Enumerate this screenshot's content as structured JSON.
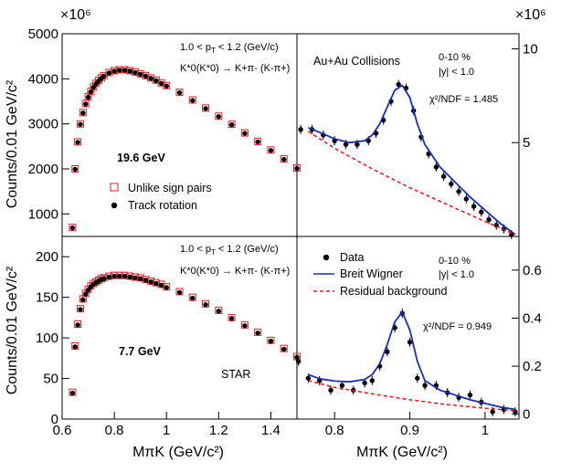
{
  "chart_data": [
    {
      "id": "top-left",
      "type": "scatter",
      "xlim": [
        0.6,
        1.5
      ],
      "ylim": [
        500,
        5000
      ],
      "ylabel": "Counts/0.01 GeV/c²",
      "y_multiplier": "×10⁶",
      "yticks": [
        1000,
        2000,
        3000,
        4000,
        5000
      ],
      "annotations": {
        "kinematics": "1.0 < pT < 1.2 (GeV/c)",
        "decay": "K*0(K*0bar) → K+π- (K-π+)",
        "energy": "19.6 GeV"
      },
      "legend": [
        "Unlike sign pairs",
        "Track rotation"
      ],
      "series": [
        {
          "name": "Unlike sign pairs",
          "marker": "open-red-square",
          "x": [
            0.64,
            0.65,
            0.66,
            0.67,
            0.68,
            0.69,
            0.7,
            0.71,
            0.72,
            0.73,
            0.74,
            0.75,
            0.76,
            0.78,
            0.8,
            0.82,
            0.84,
            0.86,
            0.88,
            0.9,
            0.92,
            0.94,
            0.96,
            0.98,
            1.0,
            1.05,
            1.1,
            1.15,
            1.2,
            1.25,
            1.3,
            1.35,
            1.4,
            1.45,
            1.5
          ],
          "values": [
            700,
            2000,
            2600,
            3000,
            3250,
            3450,
            3600,
            3720,
            3820,
            3900,
            3960,
            4020,
            4070,
            4140,
            4180,
            4200,
            4200,
            4180,
            4150,
            4110,
            4070,
            4020,
            3970,
            3910,
            3850,
            3700,
            3530,
            3350,
            3170,
            2990,
            2800,
            2610,
            2420,
            2220,
            2020
          ]
        },
        {
          "name": "Track rotation",
          "marker": "filled-black-circle",
          "x": [
            0.64,
            0.65,
            0.66,
            0.67,
            0.68,
            0.69,
            0.7,
            0.71,
            0.72,
            0.73,
            0.74,
            0.75,
            0.76,
            0.78,
            0.8,
            0.82,
            0.84,
            0.86,
            0.88,
            0.9,
            0.92,
            0.94,
            0.96,
            0.98,
            1.0,
            1.05,
            1.1,
            1.15,
            1.2,
            1.25,
            1.3,
            1.35,
            1.4,
            1.45,
            1.5
          ],
          "values": [
            690,
            1990,
            2590,
            2990,
            3240,
            3440,
            3590,
            3710,
            3810,
            3890,
            3950,
            4010,
            4060,
            4130,
            4170,
            4190,
            4190,
            4170,
            4140,
            4100,
            4060,
            4010,
            3960,
            3900,
            3840,
            3690,
            3520,
            3340,
            3160,
            2980,
            2790,
            2600,
            2410,
            2210,
            2010
          ]
        }
      ]
    },
    {
      "id": "top-right",
      "type": "scatter",
      "xlim": [
        0.75,
        1.045
      ],
      "ylim": [
        0,
        10.8
      ],
      "y_multiplier": "×10⁶",
      "yticks": [
        5,
        10
      ],
      "annotations": {
        "system": "Au+Au Collisions",
        "centrality": "0-10 %",
        "rapidity": "|y| < 1.0",
        "fit_quality": "χ²/NDF = 1.485"
      },
      "series": [
        {
          "name": "Data",
          "marker": "filled-black-circle",
          "x": [
            0.755,
            0.77,
            0.785,
            0.8,
            0.815,
            0.83,
            0.845,
            0.855,
            0.865,
            0.875,
            0.885,
            0.895,
            0.905,
            0.915,
            0.925,
            0.935,
            0.945,
            0.955,
            0.965,
            0.975,
            0.985,
            0.995,
            1.005,
            1.015,
            1.025,
            1.035
          ],
          "values": [
            5.7,
            5.7,
            5.4,
            5.1,
            4.9,
            4.9,
            5.1,
            5.5,
            6.2,
            7.2,
            8.1,
            7.9,
            6.7,
            5.3,
            4.4,
            3.7,
            3.2,
            2.8,
            2.4,
            2.0,
            1.6,
            1.3,
            0.9,
            0.6,
            0.4,
            0.1
          ]
        },
        {
          "name": "Breit Wigner",
          "style": "solid-blue",
          "x": [
            0.765,
            0.78,
            0.8,
            0.82,
            0.84,
            0.85,
            0.86,
            0.87,
            0.88,
            0.89,
            0.9,
            0.91,
            0.92,
            0.94,
            0.96,
            0.98,
            1.0,
            1.02,
            1.04
          ],
          "values": [
            5.8,
            5.55,
            5.2,
            5.0,
            5.1,
            5.4,
            6.0,
            6.9,
            7.8,
            8.05,
            7.4,
            6.0,
            4.9,
            3.7,
            2.9,
            2.1,
            1.4,
            0.7,
            0.1
          ]
        },
        {
          "name": "Residual background",
          "style": "dashed-red",
          "x": [
            0.765,
            0.8,
            0.85,
            0.9,
            0.95,
            1.0,
            1.04
          ],
          "values": [
            5.6,
            4.7,
            3.6,
            2.6,
            1.7,
            0.8,
            0.1
          ]
        }
      ]
    },
    {
      "id": "bottom-left",
      "type": "scatter",
      "xlim": [
        0.6,
        1.5
      ],
      "xlabel": "MπK (GeV/c²)",
      "ylim": [
        0,
        225
      ],
      "ylabel": "Counts/0.01 GeV/c²",
      "xticks": [
        0.6,
        0.8,
        1,
        1.2,
        1.4
      ],
      "yticks": [
        0,
        50,
        100,
        150,
        200
      ],
      "annotations": {
        "kinematics": "1.0 < pT < 1.2 (GeV/c)",
        "decay": "K*0(K*0bar) → K+π- (K-π+)",
        "energy": "7.7 GeV",
        "experiment": "STAR"
      },
      "series": [
        {
          "name": "Unlike sign pairs",
          "marker": "open-red-square",
          "x": [
            0.64,
            0.65,
            0.66,
            0.67,
            0.68,
            0.69,
            0.7,
            0.71,
            0.72,
            0.73,
            0.74,
            0.75,
            0.76,
            0.78,
            0.8,
            0.82,
            0.84,
            0.86,
            0.88,
            0.9,
            0.92,
            0.94,
            0.96,
            0.98,
            1.0,
            1.05,
            1.1,
            1.15,
            1.2,
            1.25,
            1.3,
            1.35,
            1.4,
            1.45,
            1.5
          ],
          "values": [
            33,
            90,
            117,
            136,
            148,
            155,
            160,
            164,
            167,
            169,
            171,
            173,
            174,
            176,
            177,
            177,
            177,
            176,
            175,
            174,
            172,
            170,
            168,
            166,
            163,
            157,
            150,
            142,
            134,
            125,
            116,
            107,
            97,
            87,
            77
          ]
        },
        {
          "name": "Track rotation",
          "marker": "filled-black-circle",
          "x": [
            0.64,
            0.65,
            0.66,
            0.67,
            0.68,
            0.69,
            0.7,
            0.71,
            0.72,
            0.73,
            0.74,
            0.75,
            0.76,
            0.78,
            0.8,
            0.82,
            0.84,
            0.86,
            0.88,
            0.9,
            0.92,
            0.94,
            0.96,
            0.98,
            1.0,
            1.05,
            1.1,
            1.15,
            1.2,
            1.25,
            1.3,
            1.35,
            1.4,
            1.45,
            1.5
          ],
          "values": [
            32,
            89,
            116,
            135,
            147,
            154,
            159,
            163,
            166,
            168,
            170,
            172,
            173,
            175,
            176,
            176,
            176,
            175,
            174,
            173,
            171,
            169,
            167,
            165,
            162,
            156,
            149,
            141,
            133,
            124,
            115,
            106,
            96,
            86,
            76
          ]
        }
      ]
    },
    {
      "id": "bottom-right",
      "type": "scatter",
      "xlim": [
        0.75,
        1.045
      ],
      "xlabel": "MπK (GeV/c²)",
      "ylim": [
        -0.02,
        0.74
      ],
      "xticks": [
        0.8,
        0.9,
        1
      ],
      "yticks": [
        0,
        0.2,
        0.4,
        0.6
      ],
      "annotations": {
        "centrality": "0-10 %",
        "rapidity": "|y| < 1.0",
        "fit_quality": "χ²/NDF = 0.949"
      },
      "legend": [
        "Data",
        "Breit Wigner",
        "Residual background"
      ],
      "series": [
        {
          "name": "Data",
          "marker": "filled-black-circle",
          "x": [
            0.752,
            0.765,
            0.78,
            0.795,
            0.81,
            0.825,
            0.84,
            0.85,
            0.86,
            0.87,
            0.88,
            0.89,
            0.9,
            0.91,
            0.92,
            0.935,
            0.95,
            0.965,
            0.98,
            0.995,
            1.01,
            1.025,
            1.04
          ],
          "values": [
            0.22,
            0.15,
            0.14,
            0.1,
            0.12,
            0.1,
            0.13,
            0.14,
            0.2,
            0.26,
            0.36,
            0.42,
            0.3,
            0.15,
            0.12,
            0.12,
            0.09,
            0.07,
            0.08,
            0.05,
            0.01,
            0.02,
            0.01
          ]
        },
        {
          "name": "Breit Wigner",
          "style": "solid-blue",
          "x": [
            0.765,
            0.78,
            0.8,
            0.82,
            0.84,
            0.85,
            0.86,
            0.87,
            0.88,
            0.89,
            0.9,
            0.91,
            0.92,
            0.94,
            0.96,
            0.98,
            1.0,
            1.02,
            1.04
          ],
          "values": [
            0.165,
            0.148,
            0.138,
            0.135,
            0.145,
            0.165,
            0.21,
            0.29,
            0.385,
            0.425,
            0.35,
            0.22,
            0.14,
            0.1,
            0.08,
            0.06,
            0.045,
            0.03,
            0.02
          ]
        },
        {
          "name": "Residual background",
          "style": "dashed-red",
          "x": [
            0.765,
            0.8,
            0.85,
            0.9,
            0.95,
            1.0,
            1.04
          ],
          "values": [
            0.14,
            0.112,
            0.085,
            0.06,
            0.04,
            0.025,
            0.015
          ]
        }
      ]
    }
  ],
  "texts": {
    "tl": {
      "multiplier": "×10⁶",
      "kin_pre": "1.0 < p",
      "kin_sub": "T",
      "kin_post": " < 1.2 (GeV/c)",
      "decay": "K*0(K*0) → K+π- (K-π+)",
      "energy": "19.6 GeV",
      "legend_unlike": "Unlike sign pairs",
      "legend_rot": "Track rotation"
    },
    "tr": {
      "multiplier": "×10⁶",
      "system": "Au+Au Collisions",
      "centrality": "0-10 %",
      "rapidity": "|y| < 1.0",
      "chi2": "χ²/NDF = 1.485"
    },
    "bl": {
      "kin_pre": "1.0 < p",
      "kin_sub": "T",
      "kin_post": " < 1.2 (GeV/c)",
      "decay": "K*0(K*0) → K+π- (K-π+)",
      "energy": "7.7 GeV",
      "experiment": "STAR"
    },
    "br": {
      "centrality": "0-10 %",
      "rapidity": "|y| < 1.0",
      "chi2": "χ²/NDF = 0.949",
      "legend_data": "Data",
      "legend_bw": "Breit Wigner",
      "legend_bg": "Residual background"
    },
    "ylabel_top": "Counts/0.01 GeV/c²",
    "ylabel_bottom": "Counts/0.01 GeV/c²",
    "xlabel_left": "MπK (GeV/c²)",
    "xlabel_right": "MπK (GeV/c²)"
  },
  "colors": {
    "data_red": "#dd2222",
    "fit_blue": "#1a2fb8",
    "bg_red": "#ee1111",
    "ink": "#000000"
  }
}
